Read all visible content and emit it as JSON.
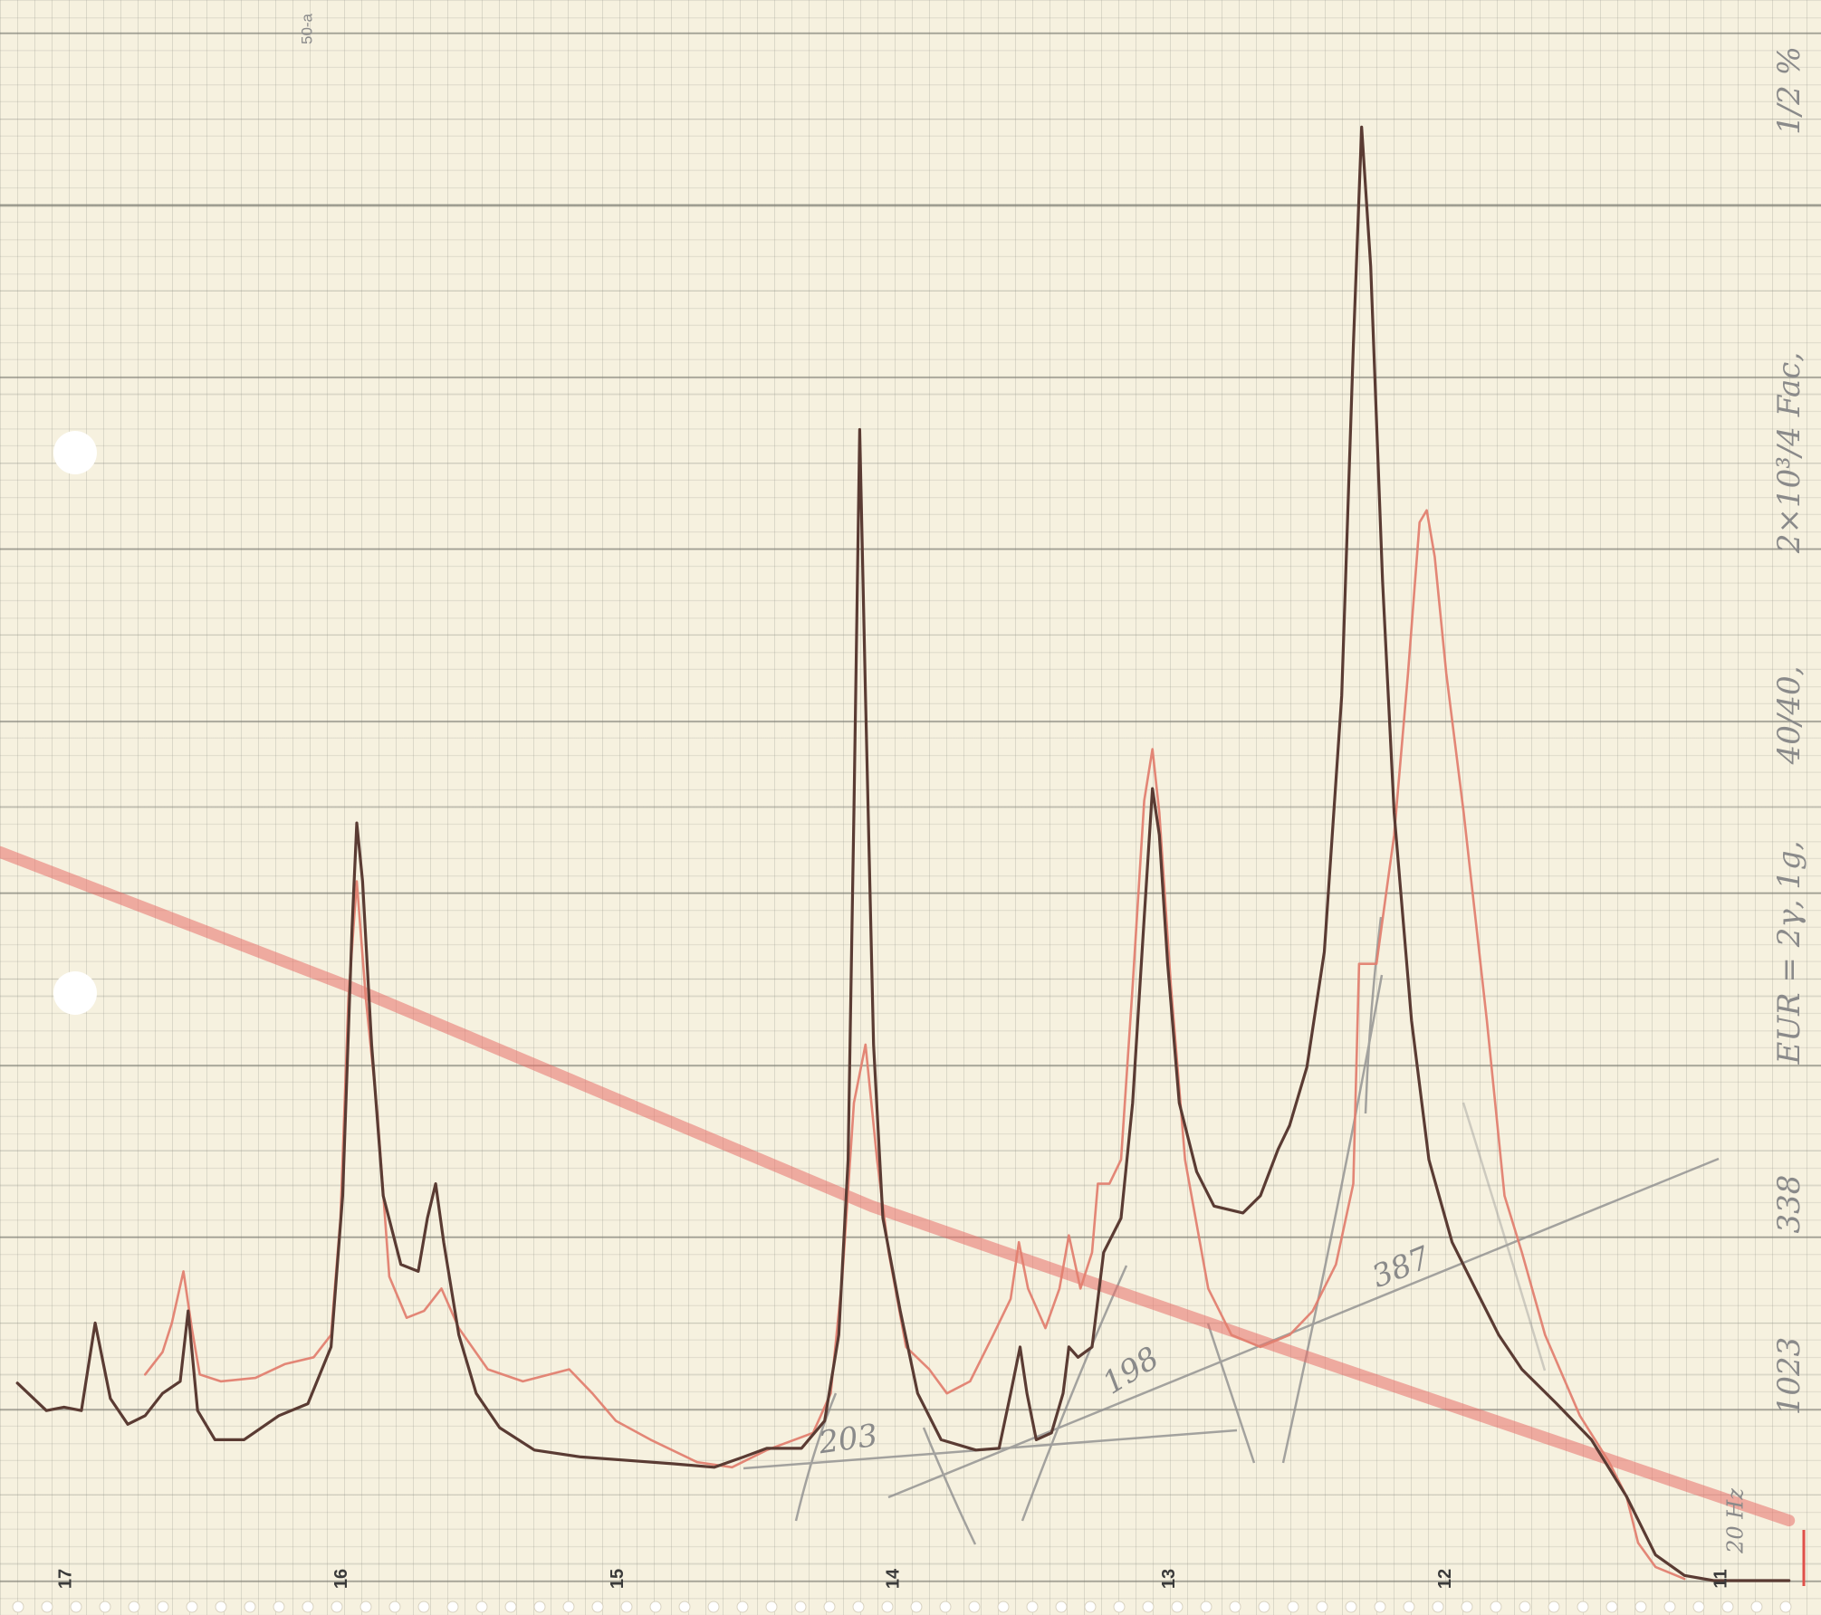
{
  "chart_data": {
    "type": "line",
    "xlim": [
      17.24,
      10.64
    ],
    "ylim": [
      -2,
      92
    ],
    "xticks": [
      17,
      16,
      15,
      14,
      13,
      12,
      11
    ],
    "series": [
      {
        "color": "#5a3b33",
        "x": [
          17.177,
          17.072,
          17.008,
          16.945,
          16.895,
          16.84,
          16.777,
          16.714,
          16.651,
          16.587,
          16.558,
          16.524,
          16.461,
          16.356,
          16.229,
          16.124,
          16.04,
          15.998,
          15.964,
          15.947,
          15.926,
          15.893,
          15.851,
          15.787,
          15.724,
          15.691,
          15.661,
          15.632,
          15.577,
          15.514,
          15.429,
          15.303,
          15.135,
          14.966,
          14.798,
          14.651,
          14.545,
          14.461,
          14.335,
          14.251,
          14.2,
          14.166,
          14.145,
          14.124,
          14.103,
          14.074,
          14.04,
          13.977,
          13.914,
          13.829,
          13.703,
          13.619,
          13.577,
          13.543,
          13.518,
          13.484,
          13.429,
          13.387,
          13.366,
          13.333,
          13.282,
          13.24,
          13.177,
          13.135,
          13.093,
          13.063,
          13.038,
          13.008,
          12.966,
          12.903,
          12.84,
          12.735,
          12.672,
          12.608,
          12.566,
          12.503,
          12.44,
          12.377,
          12.335,
          12.305,
          12.272,
          12.229,
          12.187,
          12.124,
          12.061,
          11.977,
          11.893,
          11.808,
          11.724,
          11.598,
          11.472,
          11.345,
          11.24,
          11.135,
          11.029,
          10.756
        ],
        "values": [
          11.5,
          9.9,
          10.1,
          9.9,
          15.0,
          10.6,
          9.1,
          9.6,
          10.9,
          11.6,
          15.7,
          9.9,
          8.2,
          8.2,
          9.6,
          10.3,
          13.6,
          22.4,
          38.0,
          44.1,
          40.7,
          31.2,
          22.4,
          18.4,
          18.0,
          21.1,
          23.1,
          19.7,
          14.3,
          10.9,
          8.9,
          7.6,
          7.2,
          7.0,
          6.8,
          6.6,
          7.2,
          7.7,
          7.7,
          9.3,
          14.3,
          24.5,
          44.7,
          67.0,
          51.5,
          31.2,
          21.1,
          15.7,
          10.9,
          8.2,
          7.6,
          7.7,
          10.9,
          13.6,
          10.9,
          8.2,
          8.6,
          10.9,
          13.6,
          13.0,
          13.6,
          19.1,
          21.1,
          27.8,
          38.6,
          46.1,
          43.4,
          35.9,
          27.8,
          23.8,
          21.8,
          21.4,
          22.4,
          25.1,
          26.5,
          29.9,
          36.6,
          51.5,
          71.8,
          84.6,
          76.5,
          58.2,
          44.7,
          32.6,
          24.5,
          19.7,
          17.0,
          14.3,
          12.3,
          10.3,
          8.2,
          4.9,
          1.5,
          0.3,
          0,
          0
        ]
      },
      {
        "color": "#e27f70",
        "x": [
          16.714,
          16.651,
          16.617,
          16.575,
          16.545,
          16.516,
          16.44,
          16.314,
          16.208,
          16.103,
          16.04,
          16.006,
          15.977,
          15.947,
          15.914,
          15.872,
          15.829,
          15.766,
          15.703,
          15.64,
          15.577,
          15.472,
          15.345,
          15.177,
          15.093,
          15.008,
          14.882,
          14.714,
          14.587,
          14.461,
          14.293,
          14.229,
          14.187,
          14.145,
          14.103,
          14.061,
          14.019,
          13.956,
          13.872,
          13.808,
          13.724,
          13.64,
          13.577,
          13.547,
          13.514,
          13.451,
          13.4,
          13.366,
          13.324,
          13.282,
          13.261,
          13.219,
          13.177,
          13.135,
          13.093,
          13.063,
          13.038,
          12.996,
          12.945,
          12.861,
          12.777,
          12.672,
          12.566,
          12.482,
          12.398,
          12.335,
          12.314,
          12.251,
          12.187,
          12.137,
          12.095,
          12.069,
          12.04,
          11.998,
          11.935,
          11.851,
          11.787,
          11.724,
          11.64,
          11.514,
          11.408,
          11.345,
          11.303,
          11.24,
          11.135
        ],
        "values": [
          12.0,
          13.3,
          15.0,
          18.0,
          14.7,
          12.0,
          11.6,
          11.8,
          12.6,
          13.0,
          14.3,
          21.1,
          33.9,
          40.7,
          33.9,
          27.2,
          17.7,
          15.3,
          15.7,
          17.0,
          14.7,
          12.3,
          11.6,
          12.3,
          10.9,
          9.3,
          8.2,
          6.9,
          6.6,
          7.6,
          8.6,
          10.9,
          17.7,
          27.8,
          31.2,
          24.5,
          19.1,
          13.6,
          12.3,
          10.9,
          11.6,
          14.3,
          16.4,
          19.7,
          17.0,
          14.7,
          17.0,
          20.1,
          17.0,
          19.1,
          23.1,
          23.1,
          24.5,
          34.6,
          45.4,
          48.4,
          44.7,
          34.6,
          24.5,
          17.0,
          14.3,
          13.6,
          14.3,
          15.7,
          18.4,
          23.1,
          35.9,
          35.9,
          43.4,
          52.8,
          61.6,
          62.3,
          59.6,
          52.8,
          44.7,
          32.6,
          22.4,
          19.1,
          14.3,
          9.6,
          6.9,
          4.9,
          2.2,
          0.8,
          0.1
        ]
      },
      {
        "color": "#e8706a",
        "x": [
          17.24,
          15.977,
          14.082,
          12.608,
          10.756
        ],
        "values": [
          42.4,
          34.6,
          21.8,
          13.6,
          3.5
        ]
      }
    ],
    "annotations": [
      "50-a",
      "203",
      "198",
      "387",
      "1023",
      "338",
      "EUR = 2γ, 1g,",
      "40/40,",
      "2×10³/4 Fac,",
      "1/2 %",
      "20 Hz"
    ]
  }
}
